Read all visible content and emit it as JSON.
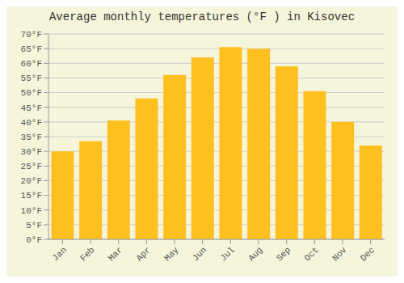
{
  "chart_data": {
    "type": "bar",
    "title": "Average monthly temperatures (°F ) in Kisovec",
    "categories": [
      "Jan",
      "Feb",
      "Mar",
      "Apr",
      "May",
      "Jun",
      "Jul",
      "Aug",
      "Sep",
      "Oct",
      "Nov",
      "Dec"
    ],
    "values": [
      30,
      33.5,
      40.5,
      48,
      56,
      62,
      65.5,
      65,
      59,
      50.5,
      40,
      32
    ],
    "color": "#FFC020",
    "ylim": [
      0,
      70
    ],
    "yticks": [
      {
        "value": 0,
        "label": "0°F"
      },
      {
        "value": 5,
        "label": "5°F"
      },
      {
        "value": 10,
        "label": "10°F"
      },
      {
        "value": 15,
        "label": "15°F"
      },
      {
        "value": 20,
        "label": "20°F"
      },
      {
        "value": 25,
        "label": "25°F"
      },
      {
        "value": 30,
        "label": "30°F"
      },
      {
        "value": 35,
        "label": "35°F"
      },
      {
        "value": 40,
        "label": "40°F"
      },
      {
        "value": 45,
        "label": "45°F"
      },
      {
        "value": 50,
        "label": "50°F"
      },
      {
        "value": 55,
        "label": "55°F"
      },
      {
        "value": 60,
        "label": "60°F"
      },
      {
        "value": 65,
        "label": "65°F"
      },
      {
        "value": 70,
        "label": "70°F"
      }
    ],
    "grid": true
  }
}
